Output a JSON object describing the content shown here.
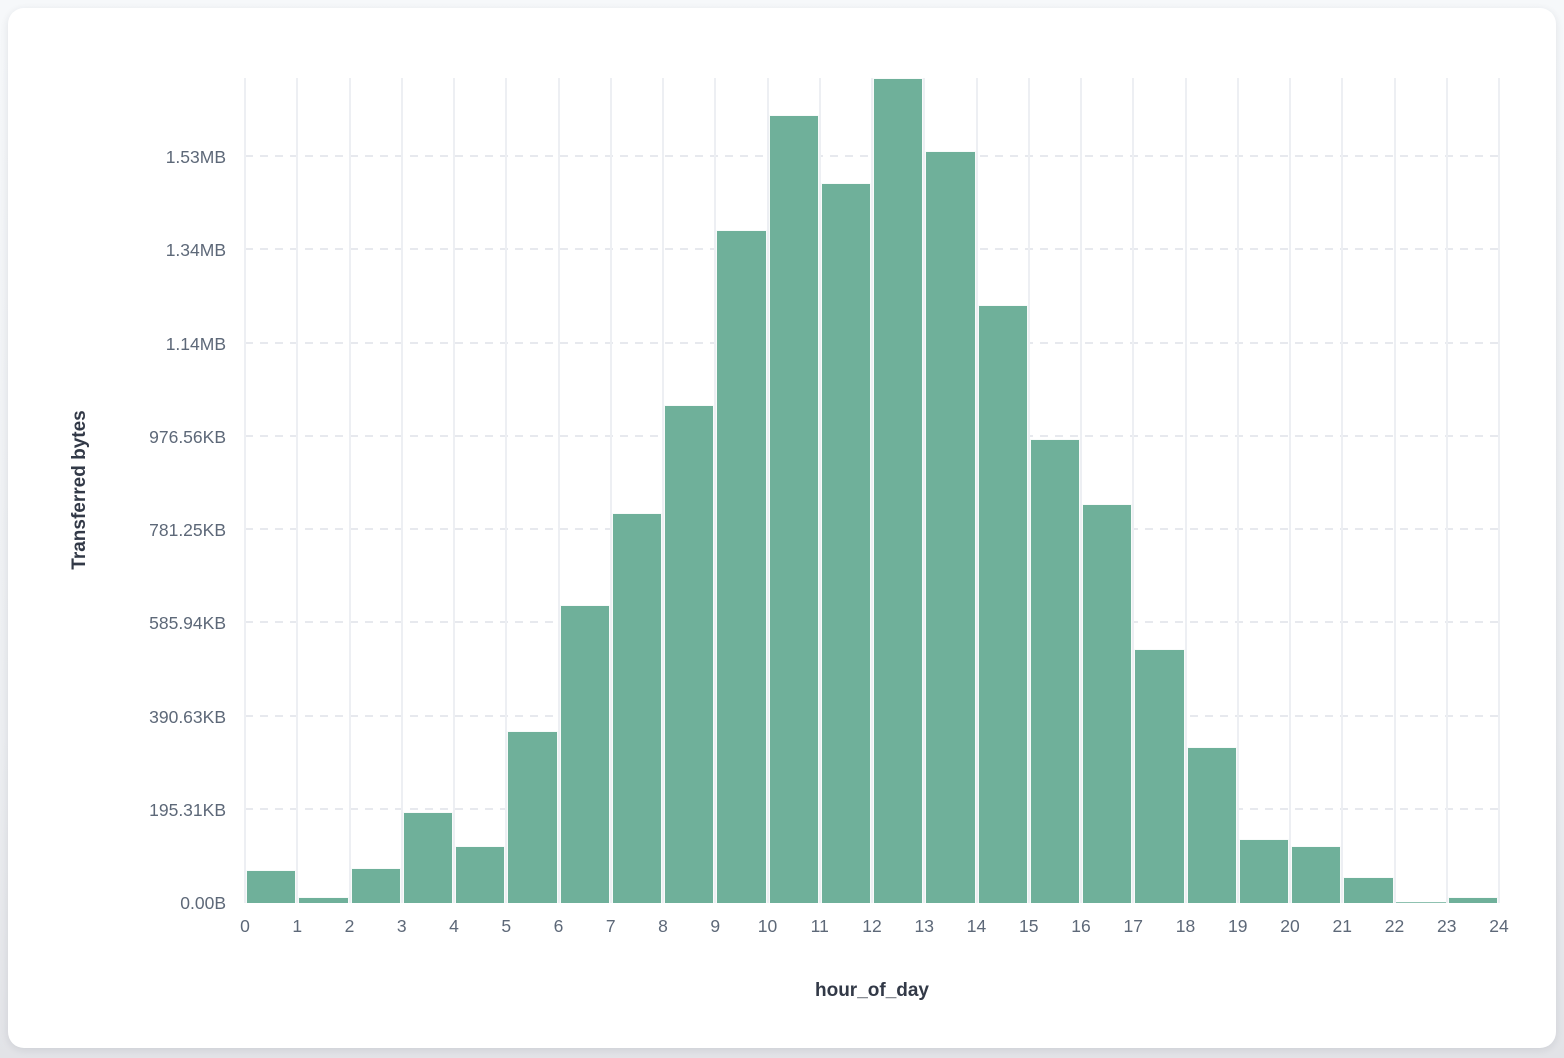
{
  "page": {
    "background_top": "#f6f8fa",
    "background_bottom": "#e2e3e7",
    "card_color": "#ffffff"
  },
  "chart_data": {
    "type": "bar",
    "subtype": "histogram",
    "title": "",
    "xlabel": "hour_of_day",
    "ylabel": "Transferred bytes",
    "bin_width_hours": 1,
    "categories": [
      0,
      1,
      2,
      3,
      4,
      5,
      6,
      7,
      8,
      9,
      10,
      11,
      12,
      13,
      14,
      15,
      16,
      17,
      18,
      19,
      20,
      21,
      22,
      23
    ],
    "values": [
      70000,
      12000,
      76000,
      195000,
      123000,
      368000,
      640000,
      836000,
      1068000,
      1443000,
      1690000,
      1544000,
      1770000,
      1614000,
      1282000,
      995000,
      855000,
      545000,
      334000,
      137000,
      122000,
      56000,
      3000,
      13000
    ],
    "values_unit": "bytes",
    "xlim": [
      0,
      24
    ],
    "ylim": [
      0,
      1770000
    ],
    "x_tick_labels": [
      "0",
      "1",
      "2",
      "3",
      "4",
      "5",
      "6",
      "7",
      "8",
      "9",
      "10",
      "11",
      "12",
      "13",
      "14",
      "15",
      "16",
      "17",
      "18",
      "19",
      "20",
      "21",
      "22",
      "23",
      "24"
    ],
    "y_ticks": [
      {
        "label": "0.00B",
        "value": 0
      },
      {
        "label": "195.31KB",
        "value": 200000
      },
      {
        "label": "390.63KB",
        "value": 400000
      },
      {
        "label": "585.94KB",
        "value": 600000
      },
      {
        "label": "781.25KB",
        "value": 800000
      },
      {
        "label": "976.56KB",
        "value": 1000000
      },
      {
        "label": "1.14MB",
        "value": 1200000
      },
      {
        "label": "1.34MB",
        "value": 1400000
      },
      {
        "label": "1.53MB",
        "value": 1600000
      }
    ],
    "grid": {
      "horizontal": "dashed",
      "vertical": "solid"
    },
    "legend": "none",
    "colors": {
      "bar_fill": "#6fb09a",
      "bar_edge": "rgba(255,255,255,0.95)",
      "tick_text": "#5d6878",
      "axis_title_text": "#323947",
      "vgrid_line": "#edeff3",
      "hgrid_line": "#e7e9ee"
    }
  }
}
